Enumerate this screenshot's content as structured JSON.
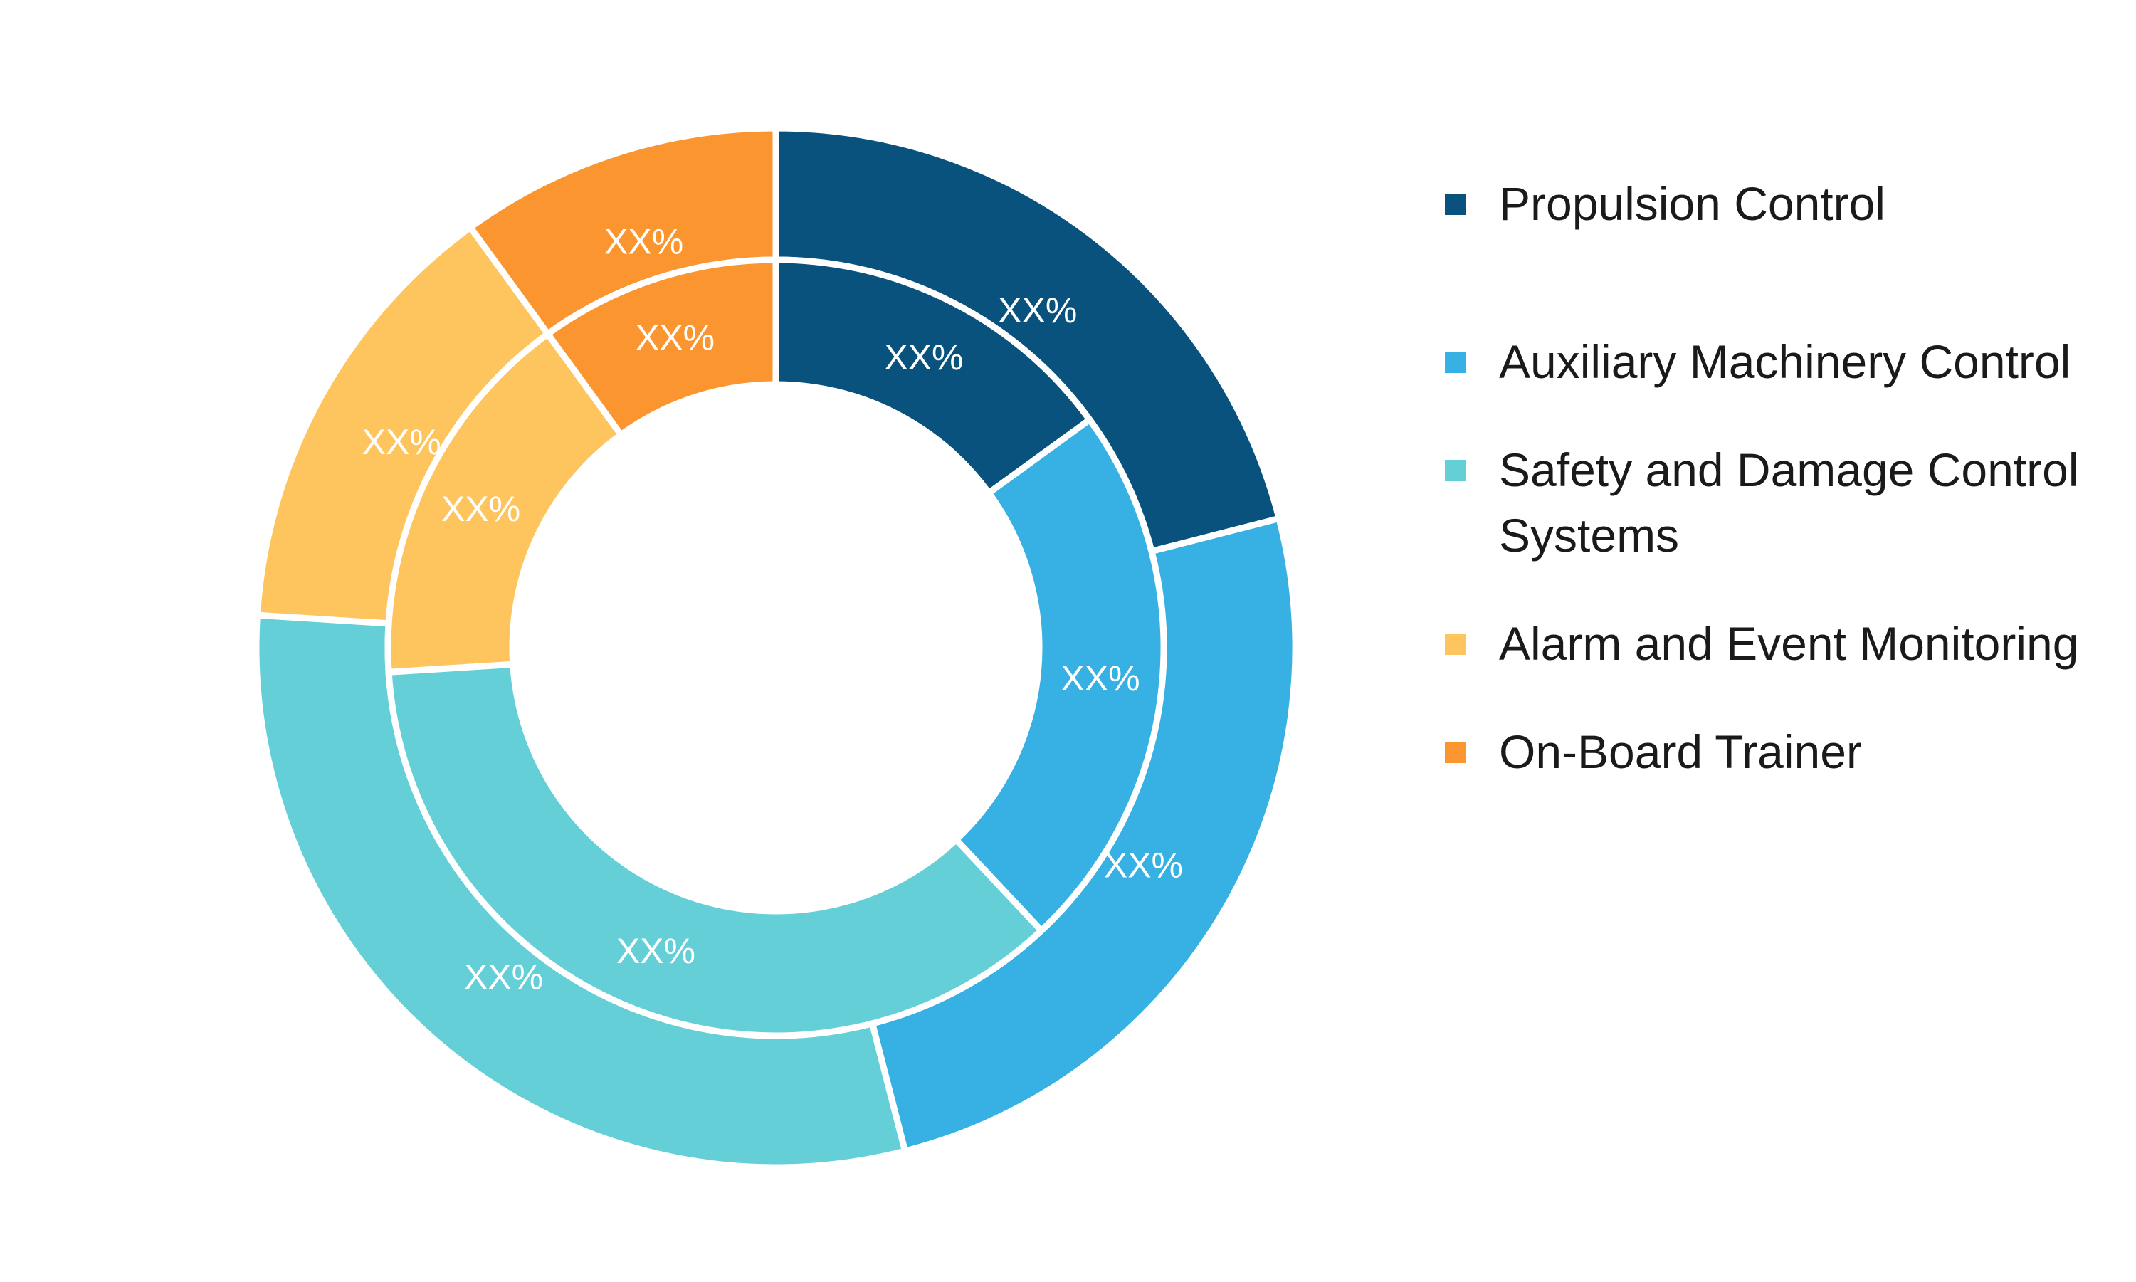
{
  "chart_data": {
    "type": "pie",
    "variant": "double-donut",
    "legend_position": "right",
    "categories": [
      "Propulsion Control",
      "Auxiliary Machinery Control",
      "Safety and Damage Control Systems",
      "Alarm and Event Monitoring",
      "On-Board Trainer"
    ],
    "colors": [
      "#0a527e",
      "#37b0e3",
      "#65cfd8",
      "#fec55f",
      "#fb952f"
    ],
    "series": [
      {
        "ring": "outer",
        "values": [
          21,
          25,
          30,
          14,
          10
        ],
        "labels": [
          "XX%",
          "XX%",
          "XX%",
          "XX%",
          "XX%"
        ]
      },
      {
        "ring": "inner",
        "values": [
          15,
          23,
          36,
          16,
          10
        ],
        "labels": [
          "XX%",
          "XX%",
          "XX%",
          "XX%",
          "XX%"
        ]
      }
    ]
  }
}
